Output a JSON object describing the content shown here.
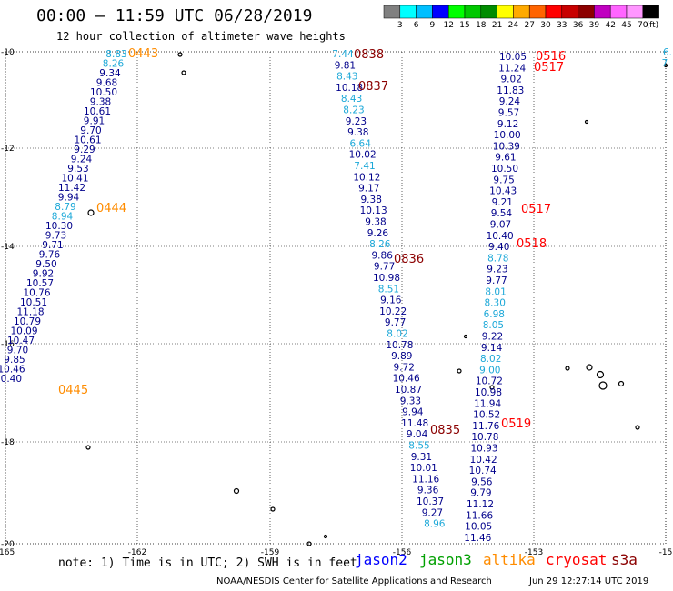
{
  "title": "00:00 – 11:59 UTC 06/28/2019",
  "subtitle": "12 hour collection of altimeter wave heights",
  "legend": {
    "unit": "(ft)",
    "colors": [
      "#808080",
      "#00ffff",
      "#00bfff",
      "#0000ff",
      "#00ff00",
      "#00c800",
      "#008c00",
      "#ffff00",
      "#ffaa00",
      "#ff6400",
      "#ff0000",
      "#c80000",
      "#8c0000",
      "#c000c0",
      "#ff64ff",
      "#ff96ff",
      "#000000"
    ],
    "ticks": [
      "3",
      "6",
      "9",
      "12",
      "15",
      "18",
      "21",
      "24",
      "27",
      "30",
      "33",
      "36",
      "39",
      "42",
      "45",
      "70"
    ]
  },
  "axes": {
    "x_ticks": [
      "-165",
      "-162",
      "-159",
      "-156",
      "-153",
      "-15"
    ],
    "y_ticks": [
      "-10",
      "-12",
      "-14",
      "-16",
      "-18",
      "-20"
    ]
  },
  "swaths": [
    {
      "color": "#00008b",
      "values": [
        {
          "v": "8.83",
          "c": "#1ca8d8"
        },
        {
          "v": "8.26",
          "c": "#1ca8d8"
        },
        {
          "v": "9.34"
        },
        {
          "v": "9.68"
        },
        {
          "v": "10.50"
        },
        {
          "v": "9.38"
        },
        {
          "v": "10.61"
        },
        {
          "v": "9.91"
        },
        {
          "v": "9.70"
        },
        {
          "v": "10.61"
        },
        {
          "v": "9.29"
        },
        {
          "v": "9.24"
        },
        {
          "v": "9.53"
        },
        {
          "v": "10.41"
        },
        {
          "v": "11.42"
        },
        {
          "v": "9.94"
        },
        {
          "v": "8.79",
          "c": "#1ca8d8"
        },
        {
          "v": "8.94",
          "c": "#1ca8d8"
        },
        {
          "v": "10.30"
        },
        {
          "v": "9.73"
        },
        {
          "v": "9.71"
        },
        {
          "v": "9.76"
        },
        {
          "v": "9.50"
        },
        {
          "v": "9.92"
        },
        {
          "v": "10.57"
        },
        {
          "v": "10.76"
        },
        {
          "v": "10.51"
        },
        {
          "v": "11.18"
        },
        {
          "v": "10.79"
        },
        {
          "v": "10.09"
        },
        {
          "v": "10.47"
        },
        {
          "v": "9.70"
        },
        {
          "v": "9.85"
        },
        {
          "v": "10.46"
        },
        {
          "v": "10.40"
        }
      ]
    },
    {
      "color": "#00008b",
      "values": [
        {
          "v": "7.44",
          "c": "#1ca8d8"
        },
        {
          "v": "9.81"
        },
        {
          "v": "8.43",
          "c": "#1ca8d8"
        },
        {
          "v": "10.18"
        },
        {
          "v": "8.43",
          "c": "#1ca8d8"
        },
        {
          "v": "8.23",
          "c": "#1ca8d8"
        },
        {
          "v": "9.23"
        },
        {
          "v": "9.38"
        },
        {
          "v": "6.64",
          "c": "#1ca8d8"
        },
        {
          "v": "10.02"
        },
        {
          "v": "7.41",
          "c": "#1ca8d8"
        },
        {
          "v": "10.12"
        },
        {
          "v": "9.17"
        },
        {
          "v": "9.38"
        },
        {
          "v": "10.13"
        },
        {
          "v": "9.38"
        },
        {
          "v": "9.26"
        },
        {
          "v": "8.26",
          "c": "#1ca8d8"
        },
        {
          "v": "9.86"
        },
        {
          "v": "9.77"
        },
        {
          "v": "10.98"
        },
        {
          "v": "8.51",
          "c": "#1ca8d8"
        },
        {
          "v": "9.16"
        },
        {
          "v": "10.22"
        },
        {
          "v": "9.77"
        },
        {
          "v": "8.02",
          "c": "#1ca8d8"
        },
        {
          "v": "10.78"
        },
        {
          "v": "9.89"
        },
        {
          "v": "9.72"
        },
        {
          "v": "10.46"
        },
        {
          "v": "10.87"
        },
        {
          "v": "9.33"
        },
        {
          "v": "9.94"
        },
        {
          "v": "11.48"
        },
        {
          "v": "9.04"
        },
        {
          "v": "8.55",
          "c": "#1ca8d8"
        },
        {
          "v": "9.31"
        },
        {
          "v": "10.01"
        },
        {
          "v": "11.16"
        },
        {
          "v": "9.36"
        },
        {
          "v": "10.37"
        },
        {
          "v": "9.27"
        },
        {
          "v": "8.96",
          "c": "#1ca8d8"
        }
      ]
    },
    {
      "color": "#00008b",
      "values": [
        {
          "v": "10.05"
        },
        {
          "v": "11.24"
        },
        {
          "v": "9.02"
        },
        {
          "v": "11.83"
        },
        {
          "v": "9.24"
        },
        {
          "v": "9.57"
        },
        {
          "v": "9.12"
        },
        {
          "v": "10.00"
        },
        {
          "v": "10.39"
        },
        {
          "v": "9.61"
        },
        {
          "v": "10.50"
        },
        {
          "v": "9.75"
        },
        {
          "v": "10.43"
        },
        {
          "v": "9.21"
        },
        {
          "v": "9.54"
        },
        {
          "v": "9.07"
        },
        {
          "v": "10.40"
        },
        {
          "v": "9.40"
        },
        {
          "v": "8.78",
          "c": "#1ca8d8"
        },
        {
          "v": "9.23"
        },
        {
          "v": "9.77"
        },
        {
          "v": "8.01",
          "c": "#1ca8d8"
        },
        {
          "v": "8.30",
          "c": "#1ca8d8"
        },
        {
          "v": "6.98",
          "c": "#1ca8d8"
        },
        {
          "v": "8.05",
          "c": "#1ca8d8"
        },
        {
          "v": "9.22"
        },
        {
          "v": "9.14"
        },
        {
          "v": "8.02",
          "c": "#1ca8d8"
        },
        {
          "v": "9.00",
          "c": "#1ca8d8"
        },
        {
          "v": "10.72"
        },
        {
          "v": "10.98"
        },
        {
          "v": "11.94"
        },
        {
          "v": "10.52"
        },
        {
          "v": "11.76"
        },
        {
          "v": "10.78"
        },
        {
          "v": "10.93"
        },
        {
          "v": "10.42"
        },
        {
          "v": "10.74"
        },
        {
          "v": "9.56"
        },
        {
          "v": "9.79"
        },
        {
          "v": "11.12"
        },
        {
          "v": "11.66"
        },
        {
          "v": "10.05"
        },
        {
          "v": "11.46"
        }
      ]
    },
    {
      "color": "#1ca8d8",
      "values": [
        {
          "v": "6."
        },
        {
          "v": "7"
        }
      ]
    }
  ],
  "times": [
    {
      "t": "0443",
      "c": "#ff8c00"
    },
    {
      "t": "0444",
      "c": "#ff8c00"
    },
    {
      "t": "0445",
      "c": "#ff8c00"
    },
    {
      "t": "0838",
      "c": "#8b0000"
    },
    {
      "t": "0837",
      "c": "#8b0000"
    },
    {
      "t": "0836",
      "c": "#8b0000"
    },
    {
      "t": "0835",
      "c": "#8b0000"
    },
    {
      "t": "0516",
      "c": "#ff0000"
    },
    {
      "t": "0517",
      "c": "#ff0000"
    },
    {
      "t": "0517",
      "c": "#ff0000"
    },
    {
      "t": "0518",
      "c": "#ff0000"
    },
    {
      "t": "0519",
      "c": "#ff0000"
    }
  ],
  "note": "note: 1) Time is in UTC; 2) SWH is in feet",
  "satellites": [
    {
      "name": "jason2",
      "color": "#0000ff"
    },
    {
      "name": "jason3",
      "color": "#00a000"
    },
    {
      "name": "altika",
      "color": "#ff8c00"
    },
    {
      "name": "cryosat",
      "color": "#ff0000"
    },
    {
      "name": "s3a",
      "color": "#8b0000"
    }
  ],
  "footer": "NOAA/NESDIS Center for Satellite Applications and Research",
  "footer_date": "Jun 29 12:27:14 UTC 2019"
}
